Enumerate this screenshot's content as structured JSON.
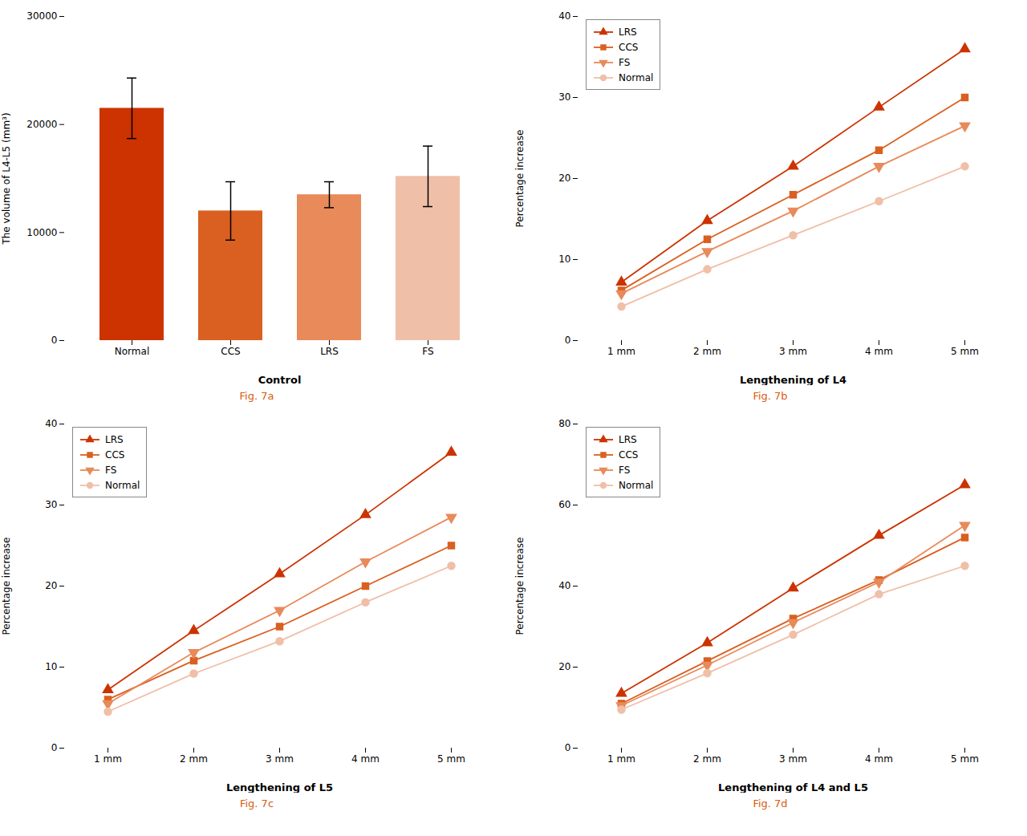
{
  "chart_data": [
    {
      "type": "bar",
      "categories": [
        "Normal",
        "CCS",
        "LRS",
        "FS"
      ],
      "values": [
        21500,
        12000,
        13500,
        15200
      ],
      "errors": [
        2800,
        2700,
        1200,
        2800
      ],
      "colors": [
        "#CC3300",
        "#D96020",
        "#E88A5A",
        "#F0BFA8"
      ],
      "ylabel": "The volume of L4-L5 (mm³)",
      "xlabel": "Control",
      "ylim": [
        0,
        30000
      ],
      "yticks": [
        0,
        10000,
        20000,
        30000
      ],
      "grid": false,
      "annotations": [
        {
          "text": "Fig. 7a",
          "color": "#D95B10"
        }
      ]
    },
    {
      "type": "line",
      "categories": [
        "1 mm",
        "2 mm",
        "3 mm",
        "4 mm",
        "5 mm"
      ],
      "series": [
        {
          "name": "LRS",
          "color": "#CC3300",
          "marker": "triangle-up",
          "values": [
            7.2,
            14.8,
            21.5,
            28.8,
            36.0
          ]
        },
        {
          "name": "CCS",
          "color": "#D96020",
          "marker": "square",
          "values": [
            6.2,
            12.5,
            18.0,
            23.5,
            30.0
          ]
        },
        {
          "name": "FS",
          "color": "#E88A5A",
          "marker": "triangle-down",
          "values": [
            5.8,
            11.0,
            16.0,
            21.5,
            26.5
          ]
        },
        {
          "name": "Normal",
          "color": "#F0BFA8",
          "marker": "circle",
          "values": [
            4.2,
            8.8,
            13.0,
            17.2,
            21.5
          ]
        }
      ],
      "ylabel": "Percentage increase",
      "xlabel": "Lengthening of L4",
      "ylim": [
        0,
        40
      ],
      "yticks": [
        0,
        10,
        20,
        30,
        40
      ],
      "grid": false,
      "legend": "upper-left",
      "annotations": [
        {
          "text": "Fig. 7b",
          "color": "#D95B10"
        }
      ]
    },
    {
      "type": "line",
      "categories": [
        "1 mm",
        "2 mm",
        "3 mm",
        "4 mm",
        "5 mm"
      ],
      "series": [
        {
          "name": "LRS",
          "color": "#CC3300",
          "marker": "triangle-up",
          "values": [
            7.2,
            14.5,
            21.5,
            28.8,
            36.5
          ]
        },
        {
          "name": "CCS",
          "color": "#D96020",
          "marker": "square",
          "values": [
            6.0,
            10.8,
            15.0,
            20.0,
            25.0
          ]
        },
        {
          "name": "FS",
          "color": "#E88A5A",
          "marker": "triangle-down",
          "values": [
            5.5,
            11.8,
            17.0,
            23.0,
            28.5
          ]
        },
        {
          "name": "Normal",
          "color": "#F0BFA8",
          "marker": "circle",
          "values": [
            4.5,
            9.2,
            13.2,
            18.0,
            22.5
          ]
        }
      ],
      "ylabel": "Percentage increase",
      "xlabel": "Lengthening of L5",
      "ylim": [
        0,
        40
      ],
      "yticks": [
        0,
        10,
        20,
        30,
        40
      ],
      "grid": false,
      "legend": "upper-left",
      "annotations": [
        {
          "text": "Fig. 7c",
          "color": "#D95B10"
        }
      ]
    },
    {
      "type": "line",
      "categories": [
        "1 mm",
        "2 mm",
        "3 mm",
        "4 mm",
        "5 mm"
      ],
      "series": [
        {
          "name": "LRS",
          "color": "#CC3300",
          "marker": "triangle-up",
          "values": [
            13.5,
            26.0,
            39.5,
            52.5,
            65.0
          ]
        },
        {
          "name": "CCS",
          "color": "#D96020",
          "marker": "square",
          "values": [
            11.0,
            21.5,
            32.0,
            41.5,
            52.0
          ]
        },
        {
          "name": "FS",
          "color": "#E88A5A",
          "marker": "triangle-down",
          "values": [
            10.5,
            20.5,
            31.0,
            41.0,
            55.0
          ]
        },
        {
          "name": "Normal",
          "color": "#F0BFA8",
          "marker": "circle",
          "values": [
            9.5,
            18.5,
            28.0,
            38.0,
            45.0
          ]
        }
      ],
      "ylabel": "Percentage increase",
      "xlabel": "Lengthening of L4 and L5",
      "ylim": [
        0,
        80
      ],
      "yticks": [
        0,
        20,
        40,
        60,
        80
      ],
      "grid": false,
      "legend": "upper-left",
      "annotations": [
        {
          "text": "Fig. 7d",
          "color": "#D95B10"
        }
      ]
    }
  ]
}
